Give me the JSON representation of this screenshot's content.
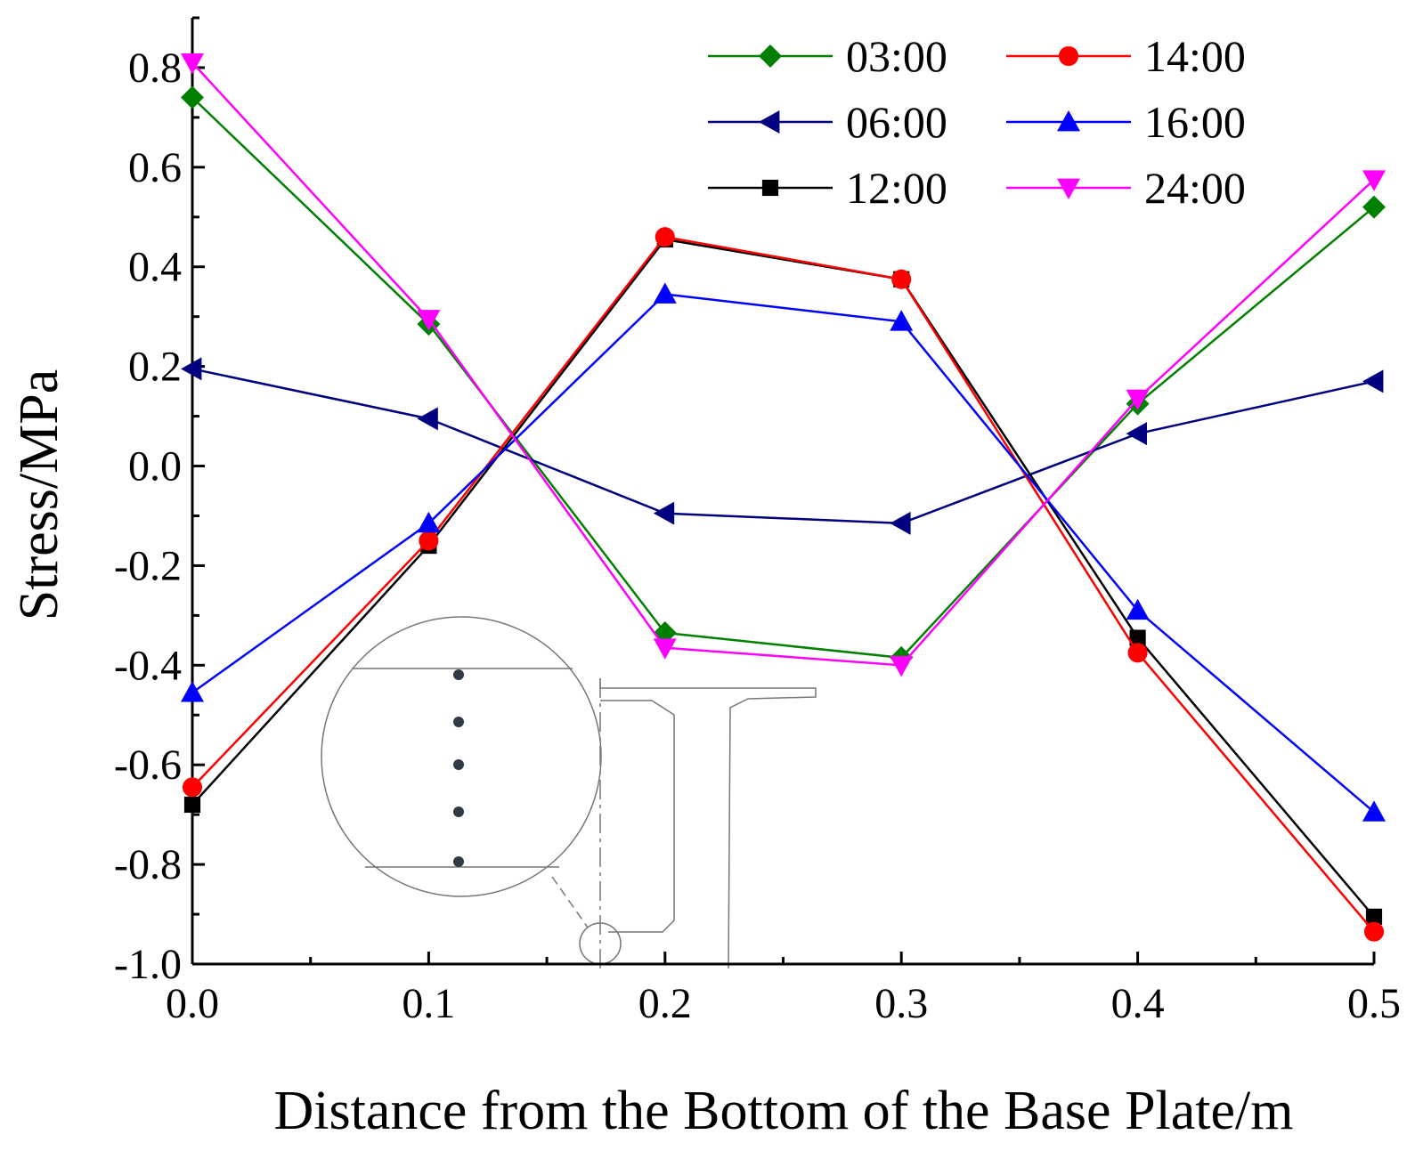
{
  "chart_data": {
    "type": "line",
    "title": "",
    "xlabel": "Distance from the Bottom of the Base Plate/m",
    "ylabel": "Stress/MPa",
    "xlim": [
      0.0,
      0.5
    ],
    "ylim": [
      -1.0,
      0.9
    ],
    "xticks": [
      "0.0",
      "0.1",
      "0.2",
      "0.3",
      "0.4",
      "0.5"
    ],
    "yticks": [
      "-1.0",
      "-0.8",
      "-0.6",
      "-0.4",
      "-0.2",
      "0.0",
      "0.2",
      "0.4",
      "0.6",
      "0.8"
    ],
    "x": [
      0.0,
      0.1,
      0.2,
      0.3,
      0.4,
      0.5
    ],
    "grid": false,
    "legend_position": "top-right",
    "series": [
      {
        "name": "03:00",
        "color": "#008000",
        "marker": "diamond",
        "values": [
          0.74,
          0.285,
          -0.335,
          -0.385,
          0.125,
          0.52
        ]
      },
      {
        "name": "06:00",
        "color": "#000080",
        "marker": "triangle-left",
        "values": [
          0.195,
          0.095,
          -0.095,
          -0.115,
          0.065,
          0.17
        ]
      },
      {
        "name": "12:00",
        "color": "#000000",
        "marker": "square",
        "values": [
          -0.68,
          -0.16,
          0.455,
          0.375,
          -0.345,
          -0.905
        ]
      },
      {
        "name": "14:00",
        "color": "#ff0000",
        "marker": "circle",
        "values": [
          -0.645,
          -0.15,
          0.46,
          0.375,
          -0.375,
          -0.935
        ]
      },
      {
        "name": "16:00",
        "color": "#0000ff",
        "marker": "triangle-up",
        "values": [
          -0.455,
          -0.115,
          0.345,
          0.29,
          -0.29,
          -0.695
        ]
      },
      {
        "name": "24:00",
        "color": "#ff00ff",
        "marker": "triangle-down",
        "values": [
          0.81,
          0.295,
          -0.365,
          -0.4,
          0.135,
          0.575
        ]
      }
    ]
  }
}
